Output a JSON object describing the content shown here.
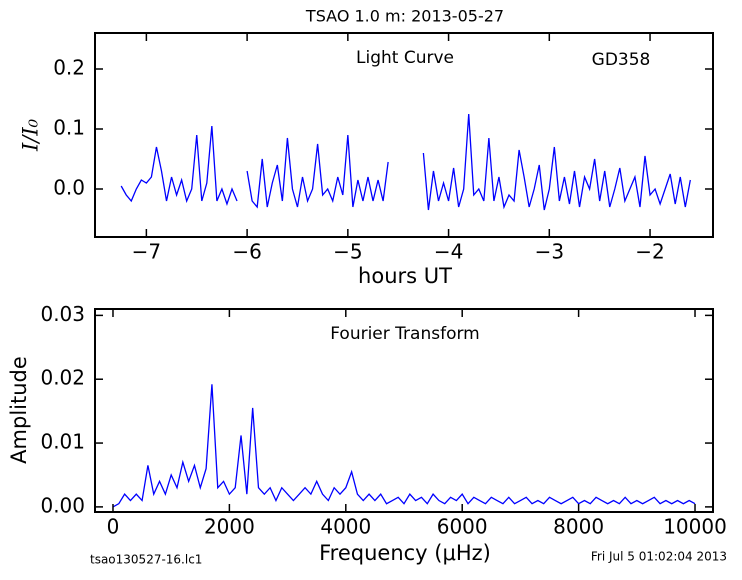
{
  "chart_data": [
    {
      "type": "line",
      "title": "TSAO 1.0 m:  2013-05-27",
      "annotations": [
        "Light Curve",
        "GD358"
      ],
      "xlabel": "hours UT",
      "ylabel": "I/I₀",
      "xlim": [
        -7.51,
        -1.375
      ],
      "ylim": [
        -0.08,
        0.26
      ],
      "xticks": [
        {
          "value": -7,
          "label": "−7"
        },
        {
          "value": -6,
          "label": "−6"
        },
        {
          "value": -5,
          "label": "−5"
        },
        {
          "value": -4,
          "label": "−4"
        },
        {
          "value": -3,
          "label": "−3"
        },
        {
          "value": -2,
          "label": "−2"
        }
      ],
      "yticks": [
        {
          "value": 0,
          "label": "0.0"
        },
        0.1,
        0.2
      ],
      "x": [
        -7.25,
        -7.2,
        -7.15,
        -7.1,
        -7.05,
        -7.0,
        -6.95,
        -6.9,
        -6.85,
        -6.8,
        -6.75,
        -6.7,
        -6.65,
        -6.6,
        -6.55,
        -6.5,
        -6.45,
        -6.4,
        -6.35,
        -6.3,
        -6.25,
        -6.2,
        -6.15,
        -6.1,
        -6.05,
        -6.0,
        -5.95,
        -5.9,
        -5.85,
        -5.8,
        -5.75,
        -5.7,
        -5.65,
        -5.6,
        -5.55,
        -5.5,
        -5.45,
        -5.4,
        -5.35,
        -5.3,
        -5.25,
        -5.2,
        -5.15,
        -5.1,
        -5.05,
        -5.0,
        -4.95,
        -4.9,
        -4.85,
        -4.8,
        -4.75,
        -4.7,
        -4.65,
        -4.6,
        -4.55,
        -4.5,
        -4.45,
        -4.4,
        -4.35,
        -4.3,
        -4.25,
        -4.2,
        -4.15,
        -4.1,
        -4.05,
        -4.0,
        -3.95,
        -3.9,
        -3.85,
        -3.8,
        -3.75,
        -3.7,
        -3.65,
        -3.6,
        -3.55,
        -3.5,
        -3.45,
        -3.4,
        -3.35,
        -3.3,
        -3.25,
        -3.2,
        -3.15,
        -3.1,
        -3.05,
        -3.0,
        -2.95,
        -2.9,
        -2.85,
        -2.8,
        -2.75,
        -2.7,
        -2.65,
        -2.6,
        -2.55,
        -2.5,
        -2.45,
        -2.4,
        -2.35,
        -2.3,
        -2.25,
        -2.2,
        -2.15,
        -2.1,
        -2.05,
        -2.0,
        -1.95,
        -1.9,
        -1.85,
        -1.8,
        -1.75,
        -1.7,
        -1.65,
        -1.6
      ],
      "series": [
        {
          "color": "#0000ff",
          "values": [
            0.005,
            -0.01,
            -0.02,
            0.0,
            0.015,
            0.01,
            0.02,
            0.07,
            0.03,
            -0.02,
            0.02,
            -0.01,
            0.015,
            -0.02,
            0.0,
            0.09,
            -0.02,
            0.01,
            0.105,
            -0.02,
            0.0,
            -0.025,
            0.0,
            -0.02,
            null,
            0.03,
            -0.02,
            -0.03,
            0.05,
            -0.03,
            0.01,
            0.04,
            -0.02,
            0.085,
            0.0,
            -0.03,
            0.02,
            -0.02,
            0.0,
            0.075,
            -0.01,
            0.0,
            -0.02,
            0.02,
            -0.01,
            0.09,
            -0.03,
            0.015,
            -0.02,
            0.02,
            -0.02,
            0.015,
            -0.02,
            0.045,
            null,
            null,
            null,
            null,
            null,
            null,
            0.06,
            -0.035,
            0.03,
            -0.02,
            0.01,
            -0.02,
            0.035,
            -0.03,
            0.0,
            0.125,
            -0.01,
            0.0,
            -0.02,
            0.085,
            -0.02,
            0.02,
            -0.03,
            -0.01,
            -0.02,
            0.065,
            0.02,
            -0.03,
            0.0,
            0.04,
            -0.035,
            0.0,
            0.07,
            -0.02,
            0.02,
            -0.025,
            0.03,
            -0.03,
            0.02,
            0.0,
            0.05,
            -0.02,
            0.03,
            -0.03,
            0.0,
            0.035,
            -0.02,
            0.0,
            0.02,
            -0.03,
            0.055,
            -0.01,
            0.0,
            -0.025,
            0.0,
            0.025,
            -0.025,
            0.02,
            -0.03,
            0.015
          ]
        }
      ]
    },
    {
      "type": "line",
      "annotations": [
        "Fourier Transform"
      ],
      "xlabel": "Frequency (μHz)",
      "ylabel": "Amplitude",
      "xlim": [
        -309,
        10309
      ],
      "ylim": [
        -0.0008,
        0.031
      ],
      "xticks": [
        0,
        2000,
        4000,
        6000,
        8000,
        10000
      ],
      "yticks": [
        {
          "value": 0,
          "label": "0.00"
        },
        {
          "value": 0.01,
          "label": "0.01"
        },
        {
          "value": 0.02,
          "label": "0.02"
        },
        {
          "value": 0.03,
          "label": "0.03"
        }
      ],
      "x": [
        0,
        100,
        200,
        300,
        400,
        500,
        600,
        700,
        800,
        900,
        1000,
        1100,
        1200,
        1300,
        1400,
        1500,
        1600,
        1700,
        1800,
        1900,
        2000,
        2100,
        2200,
        2300,
        2400,
        2500,
        2600,
        2700,
        2800,
        2900,
        3000,
        3100,
        3200,
        3300,
        3400,
        3500,
        3600,
        3700,
        3800,
        3900,
        4000,
        4100,
        4200,
        4300,
        4400,
        4500,
        4600,
        4700,
        4800,
        4900,
        5000,
        5100,
        5200,
        5300,
        5400,
        5500,
        5600,
        5700,
        5800,
        5900,
        6000,
        6100,
        6200,
        6300,
        6400,
        6500,
        6600,
        6700,
        6800,
        6900,
        7000,
        7100,
        7200,
        7300,
        7400,
        7500,
        7600,
        7700,
        7800,
        7900,
        8000,
        8100,
        8200,
        8300,
        8400,
        8500,
        8600,
        8700,
        8800,
        8900,
        9000,
        9100,
        9200,
        9300,
        9400,
        9500,
        9600,
        9700,
        9800,
        9900,
        10000
      ],
      "series": [
        {
          "color": "#0000ff",
          "values": [
            0.0,
            0.0005,
            0.002,
            0.001,
            0.002,
            0.001,
            0.0065,
            0.002,
            0.004,
            0.002,
            0.005,
            0.003,
            0.007,
            0.004,
            0.0065,
            0.003,
            0.006,
            0.0192,
            0.003,
            0.004,
            0.002,
            0.003,
            0.0112,
            0.002,
            0.0155,
            0.003,
            0.002,
            0.003,
            0.001,
            0.003,
            0.002,
            0.001,
            0.002,
            0.003,
            0.002,
            0.004,
            0.002,
            0.001,
            0.003,
            0.002,
            0.003,
            0.0055,
            0.002,
            0.001,
            0.002,
            0.001,
            0.002,
            0.0005,
            0.001,
            0.0015,
            0.0005,
            0.002,
            0.001,
            0.0015,
            0.0005,
            0.002,
            0.001,
            0.0005,
            0.0015,
            0.001,
            0.002,
            0.0005,
            0.0015,
            0.001,
            0.0005,
            0.0015,
            0.001,
            0.0005,
            0.0015,
            0.0005,
            0.001,
            0.0015,
            0.0005,
            0.001,
            0.0005,
            0.0015,
            0.001,
            0.0005,
            0.001,
            0.0015,
            0.0005,
            0.001,
            0.0005,
            0.0015,
            0.001,
            0.0005,
            0.001,
            0.0005,
            0.0015,
            0.0005,
            0.001,
            0.0005,
            0.001,
            0.0015,
            0.0005,
            0.001,
            0.0005,
            0.001,
            0.0005,
            0.001,
            0.0005
          ]
        }
      ]
    }
  ],
  "footer": {
    "left": "tsao130527-16.lc1",
    "right": "Fri Jul  5 01:02:04 2013"
  }
}
